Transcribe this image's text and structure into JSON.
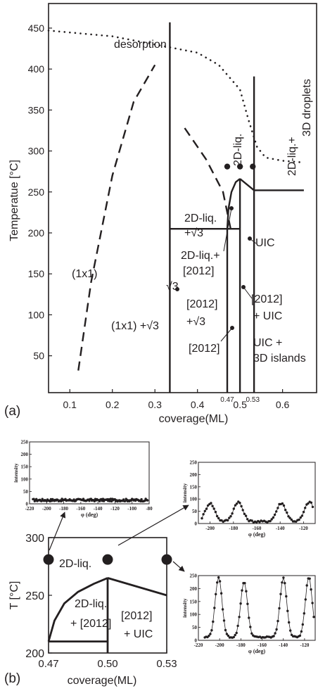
{
  "colors": {
    "ink": "#231f20",
    "background": "#ffffff"
  },
  "chart_data": [
    {
      "type": "line",
      "panel_label": "(a)",
      "xlabel": "coverage(ML)",
      "ylabel": "Temperatue [°C]",
      "xlim": [
        0.05,
        0.68
      ],
      "ylim": [
        5,
        480
      ],
      "x_ticks": [
        "0.1",
        "0.2",
        "0.3",
        "0.4",
        "0.5",
        "0.6"
      ],
      "y_ticks": [
        "50",
        "100",
        "150",
        "200",
        "250",
        "300",
        "350",
        "400",
        "450"
      ],
      "extra_x_ticks": [
        "0.47",
        "0.53"
      ],
      "lines": {
        "desorption": {
          "style": "dotted",
          "x": [
            0.05,
            0.2,
            0.3,
            0.4,
            0.45,
            0.5,
            0.52,
            0.54,
            0.56,
            0.6,
            0.65
          ],
          "y": [
            447,
            440,
            430,
            420,
            405,
            375,
            338,
            305,
            292,
            288,
            286
          ]
        },
        "dash_left": {
          "style": "dashed",
          "x": [
            0.12,
            0.15,
            0.2,
            0.25,
            0.3
          ],
          "y": [
            32,
            140,
            270,
            360,
            405
          ]
        },
        "dash_mid": {
          "style": "dashed",
          "x": [
            0.37,
            0.42,
            0.46,
            0.48
          ],
          "y": [
            328,
            290,
            250,
            200
          ]
        },
        "v033": {
          "style": "solid",
          "x": [
            0.335,
            0.335
          ],
          "y": [
            5,
            457
          ]
        },
        "h205": {
          "style": "solid",
          "x": [
            0.335,
            0.5
          ],
          "y": [
            205,
            205
          ]
        },
        "v047": {
          "style": "solid",
          "x": [
            0.47,
            0.47
          ],
          "y": [
            5,
            205
          ]
        },
        "v050": {
          "style": "solid",
          "x": [
            0.5,
            0.5
          ],
          "y": [
            5,
            266
          ]
        },
        "v053": {
          "style": "solid",
          "x": [
            0.533,
            0.533
          ],
          "y": [
            5,
            391
          ]
        },
        "dome_left": {
          "style": "solid",
          "x": [
            0.47,
            0.473,
            0.48,
            0.49,
            0.5
          ],
          "y": [
            205,
            230,
            250,
            262,
            266
          ]
        },
        "dome_right": {
          "style": "solid",
          "x": [
            0.5,
            0.533
          ],
          "y": [
            266,
            252
          ]
        },
        "h252": {
          "style": "solid",
          "x": [
            0.533,
            0.65
          ],
          "y": [
            252,
            252
          ]
        }
      },
      "markers": {
        "x": [
          0.47,
          0.5,
          0.53
        ],
        "y": [
          281,
          281,
          281
        ]
      },
      "annotations": [
        {
          "text": "desorption",
          "x": 0.29,
          "y": 455
        },
        {
          "text": "2D-liq.+",
          "x": 0.615,
          "y": 330
        },
        {
          "text": "3D droplets",
          "x": 0.64,
          "y": 390
        },
        {
          "text": "2D-liq.",
          "x": 0.49,
          "y": 340
        },
        {
          "text": "2D-liq.",
          "x": 0.39,
          "y": 248
        },
        {
          "text": "+√3",
          "x": 0.39,
          "y": 226
        },
        {
          "text": "2D-liq.+",
          "x": 0.4,
          "y": 178
        },
        {
          "text": "[2012]",
          "x": 0.4,
          "y": 155
        },
        {
          "text": "UIC",
          "x": 0.57,
          "y": 200
        },
        {
          "text": "(1x1)",
          "x": 0.12,
          "y": 148
        },
        {
          "text": "√3",
          "x": 0.3,
          "y": 137
        },
        {
          "text": "[2012]",
          "x": 0.37,
          "y": 113
        },
        {
          "text": "+√3",
          "x": 0.37,
          "y": 88
        },
        {
          "text": "(1x1) +√3",
          "x": 0.2,
          "y": 80
        },
        {
          "text": "[2012]",
          "x": 0.58,
          "y": 122
        },
        {
          "text": "+ UIC",
          "x": 0.58,
          "y": 98
        },
        {
          "text": "UIC +",
          "x": 0.57,
          "y": 65
        },
        {
          "text": "3D islands",
          "x": 0.59,
          "y": 42
        },
        {
          "text": "[2012]",
          "x": 0.43,
          "y": 37
        }
      ]
    },
    {
      "type": "line",
      "panel_label": "(b)",
      "xlabel": "coverage(ML)",
      "ylabel": "T [°C]",
      "xlim": [
        0.47,
        0.53
      ],
      "ylim": [
        200,
        300
      ],
      "x_ticks": [
        "0.47",
        "0.50",
        "0.53"
      ],
      "y_ticks": [
        "200",
        "250",
        "300"
      ],
      "lines": {
        "h210": {
          "x": [
            0.47,
            0.5
          ],
          "y": [
            210,
            210
          ]
        },
        "v050": {
          "x": [
            0.5,
            0.5
          ],
          "y": [
            200,
            265
          ]
        },
        "dome_left": {
          "x": [
            0.47,
            0.473,
            0.478,
            0.485,
            0.493,
            0.5
          ],
          "y": [
            210,
            228,
            243,
            253,
            260,
            265
          ]
        },
        "dome_right": {
          "x": [
            0.5,
            0.53
          ],
          "y": [
            265,
            250
          ]
        }
      },
      "markers": {
        "x": [
          0.47,
          0.5,
          0.53
        ],
        "y": [
          281,
          281,
          281
        ]
      },
      "annotations": [
        {
          "text": "2D-liq.",
          "x": 0.476,
          "y": 270
        },
        {
          "text": "2D-liq.",
          "x": 0.48,
          "y": 238
        },
        {
          "text": "+ [2012]",
          "x": 0.479,
          "y": 221
        },
        {
          "text": "[2012]",
          "x": 0.508,
          "y": 226
        },
        {
          "text": "+ UIC",
          "x": 0.508,
          "y": 212
        }
      ]
    },
    {
      "type": "scatter",
      "xlabel": "φ (deg)",
      "ylabel": "intensity",
      "xlim": [
        -220,
        -80
      ],
      "ylim": [
        0,
        250
      ],
      "x_ticks": [
        "-220",
        "-200",
        "-180",
        "-160",
        "-140",
        "-120",
        "-100",
        "-80"
      ],
      "y_ticks": [
        "0",
        "50",
        "100",
        "150",
        "200",
        "250"
      ],
      "peaks": [],
      "base": 15,
      "noise": 5
    },
    {
      "type": "scatter",
      "xlabel": "φ (deg)",
      "ylabel": "intensity",
      "xlim": [
        -210,
        -110
      ],
      "ylim": [
        0,
        250
      ],
      "x_ticks": [
        "-200",
        "-180",
        "-160",
        "-140",
        "-120"
      ],
      "y_ticks": [
        "0",
        "50",
        "100",
        "150",
        "200",
        "250"
      ],
      "peaks": [
        [
          -200,
          75
        ],
        [
          -176,
          80
        ],
        [
          -139,
          75
        ],
        [
          -115,
          80
        ]
      ],
      "width": 4,
      "base": 8,
      "noise": 4
    },
    {
      "type": "scatter",
      "xlabel": "φ (deg)",
      "ylabel": "intensity",
      "xlim": [
        -220,
        -110
      ],
      "ylim": [
        0,
        250
      ],
      "x_ticks": [
        "-220",
        "-200",
        "-180",
        "-160",
        "-140",
        "-120"
      ],
      "y_ticks": [
        "0",
        "50",
        "100",
        "150",
        "200",
        "250"
      ],
      "peaks": [
        [
          -201,
          232
        ],
        [
          -177,
          215
        ],
        [
          -140,
          228
        ],
        [
          -116,
          232
        ]
      ],
      "width": 3.2,
      "base": 12,
      "noise": 3
    }
  ]
}
